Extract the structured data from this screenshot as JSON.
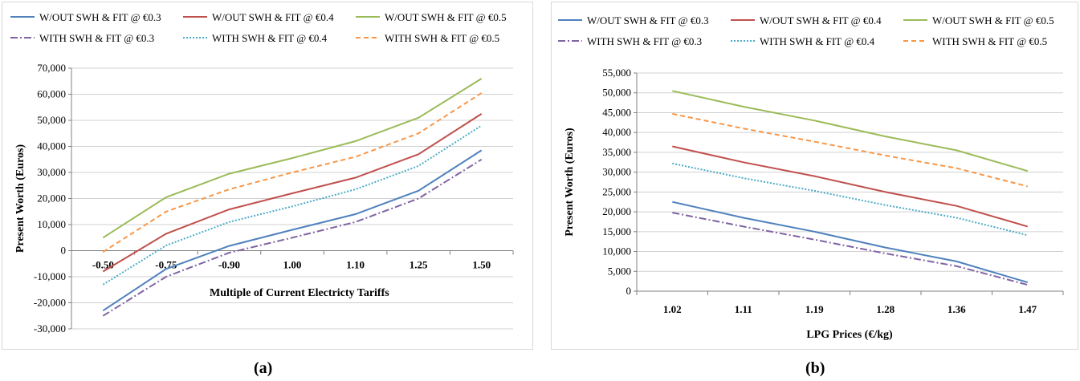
{
  "colors": {
    "wout_03": "#4f81bd",
    "wout_04": "#c0504d",
    "wout_05": "#9bbb59",
    "with_03": "#8064a2",
    "with_04": "#4bacc6",
    "with_05": "#f79646"
  },
  "chart_data": [
    {
      "type": "line",
      "panel_label": "(a)",
      "title": "",
      "xlabel": "Multiple of Current Electricty Tariffs",
      "ylabel": "Present Worth (Euros)",
      "categories": [
        "-0.50",
        "-0.75",
        "-0.90",
        "1.00",
        "1.10",
        "1.25",
        "1.50"
      ],
      "ylim": [
        -30000,
        70000
      ],
      "yticks": [
        -30000,
        -20000,
        -10000,
        0,
        10000,
        20000,
        30000,
        40000,
        50000,
        60000,
        70000
      ],
      "ytick_labels": [
        "-30,000",
        "-20,000",
        "-10,000",
        "0",
        "10,000",
        "20,000",
        "30,000",
        "40,000",
        "50,000",
        "60,000",
        "70,000"
      ],
      "grid": true,
      "legend": "top",
      "series": [
        {
          "name": "W/OUT SWH & FIT @ €0.3",
          "key": "wout_03",
          "dash": "solid",
          "values": [
            -23000,
            -7000,
            1800,
            8000,
            14000,
            23000,
            38500
          ]
        },
        {
          "name": "W/OUT SWH & FIT @ €0.4",
          "key": "wout_04",
          "dash": "solid",
          "values": [
            -8000,
            6500,
            15800,
            22000,
            28000,
            37000,
            52500
          ]
        },
        {
          "name": "W/OUT SWH & FIT @ €0.5",
          "key": "wout_05",
          "dash": "solid",
          "values": [
            5000,
            20500,
            29500,
            35500,
            42000,
            51000,
            66000
          ]
        },
        {
          "name": "WITH SWH & FIT @ €0.3",
          "key": "with_03",
          "dash": "dashdot",
          "values": [
            -25000,
            -10000,
            -800,
            5000,
            11000,
            20000,
            35000
          ]
        },
        {
          "name": "WITH SWH & FIT @ €0.4",
          "key": "with_04",
          "dash": "dot",
          "values": [
            -13000,
            2000,
            11000,
            17000,
            23500,
            32500,
            48000
          ]
        },
        {
          "name": "WITH SWH & FIT @ €0.5",
          "key": "with_05",
          "dash": "dash",
          "values": [
            -500,
            15000,
            23500,
            30000,
            36000,
            45000,
            60500
          ]
        }
      ]
    },
    {
      "type": "line",
      "panel_label": "(b)",
      "title": "",
      "xlabel": "LPG Prices (€/kg)",
      "ylabel": "Present Worth (Euros)",
      "categories": [
        "1.02",
        "1.11",
        "1.19",
        "1.28",
        "1.36",
        "1.47"
      ],
      "ylim": [
        0,
        55000
      ],
      "yticks": [
        0,
        5000,
        10000,
        15000,
        20000,
        25000,
        30000,
        35000,
        40000,
        45000,
        50000,
        55000
      ],
      "ytick_labels": [
        "0",
        "5,000",
        "10,000",
        "15,000",
        "20,000",
        "25,000",
        "30,000",
        "35,000",
        "40,000",
        "45,000",
        "50,000",
        "55,000"
      ],
      "grid": true,
      "legend": "top",
      "series": [
        {
          "name": "W/OUT SWH & FIT @ €0.3",
          "key": "wout_03",
          "dash": "solid",
          "values": [
            22500,
            18500,
            15000,
            11000,
            7500,
            2200
          ]
        },
        {
          "name": "W/OUT SWH & FIT @ €0.4",
          "key": "wout_04",
          "dash": "solid",
          "values": [
            36500,
            32500,
            29000,
            25000,
            21500,
            16300
          ]
        },
        {
          "name": "W/OUT SWH & FIT @ €0.5",
          "key": "wout_05",
          "dash": "solid",
          "values": [
            50500,
            46500,
            43000,
            39000,
            35500,
            30300
          ]
        },
        {
          "name": "WITH SWH & FIT @ €0.3",
          "key": "with_03",
          "dash": "dashdot",
          "values": [
            19800,
            16300,
            13000,
            9500,
            6300,
            1600
          ]
        },
        {
          "name": "WITH SWH & FIT @ €0.4",
          "key": "with_04",
          "dash": "dot",
          "values": [
            32200,
            28500,
            25300,
            21700,
            18500,
            14100
          ]
        },
        {
          "name": "WITH SWH & FIT @ €0.5",
          "key": "with_05",
          "dash": "dash",
          "values": [
            44700,
            41000,
            37700,
            34200,
            31000,
            26400
          ]
        }
      ]
    }
  ]
}
